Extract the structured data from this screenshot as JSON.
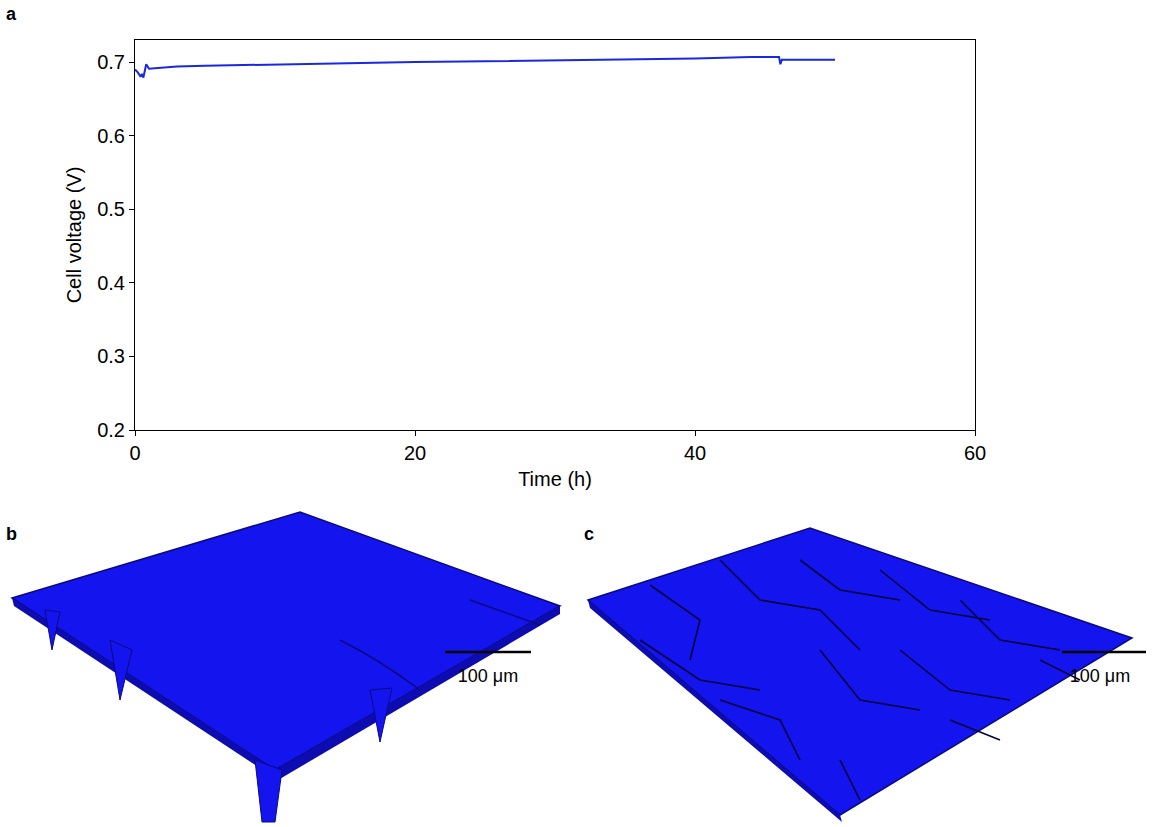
{
  "chart_data": {
    "type": "line",
    "panel": "a",
    "x_label": "Time (h)",
    "y_label": "Cell voltage (V)",
    "x": [
      0,
      0.2,
      0.4,
      0.5,
      0.6,
      0.8,
      1.0,
      1.5,
      3,
      5,
      10,
      15,
      20,
      25,
      30,
      35,
      40,
      44,
      46,
      46.1,
      46.2,
      46.4,
      48,
      50
    ],
    "series": [
      {
        "name": "Cell voltage",
        "color": "#1a28e0",
        "values": [
          0.69,
          0.686,
          0.68,
          0.684,
          0.679,
          0.697,
          0.691,
          0.692,
          0.694,
          0.695,
          0.697,
          0.699,
          0.7,
          0.701,
          0.702,
          0.703,
          0.705,
          0.707,
          0.707,
          0.697,
          0.703,
          0.703,
          0.703,
          0.703
        ]
      }
    ],
    "xlim": [
      0,
      60
    ],
    "xticks": [
      0,
      20,
      40,
      60
    ],
    "ylim": [
      0.2,
      0.73
    ],
    "yticks": [
      0.2,
      0.3,
      0.4,
      0.5,
      0.6,
      0.7
    ],
    "grid": false
  },
  "images": [
    {
      "panel": "b",
      "scale_bar": "100 μm"
    },
    {
      "panel": "c",
      "scale_bar": "100 μm"
    }
  ]
}
